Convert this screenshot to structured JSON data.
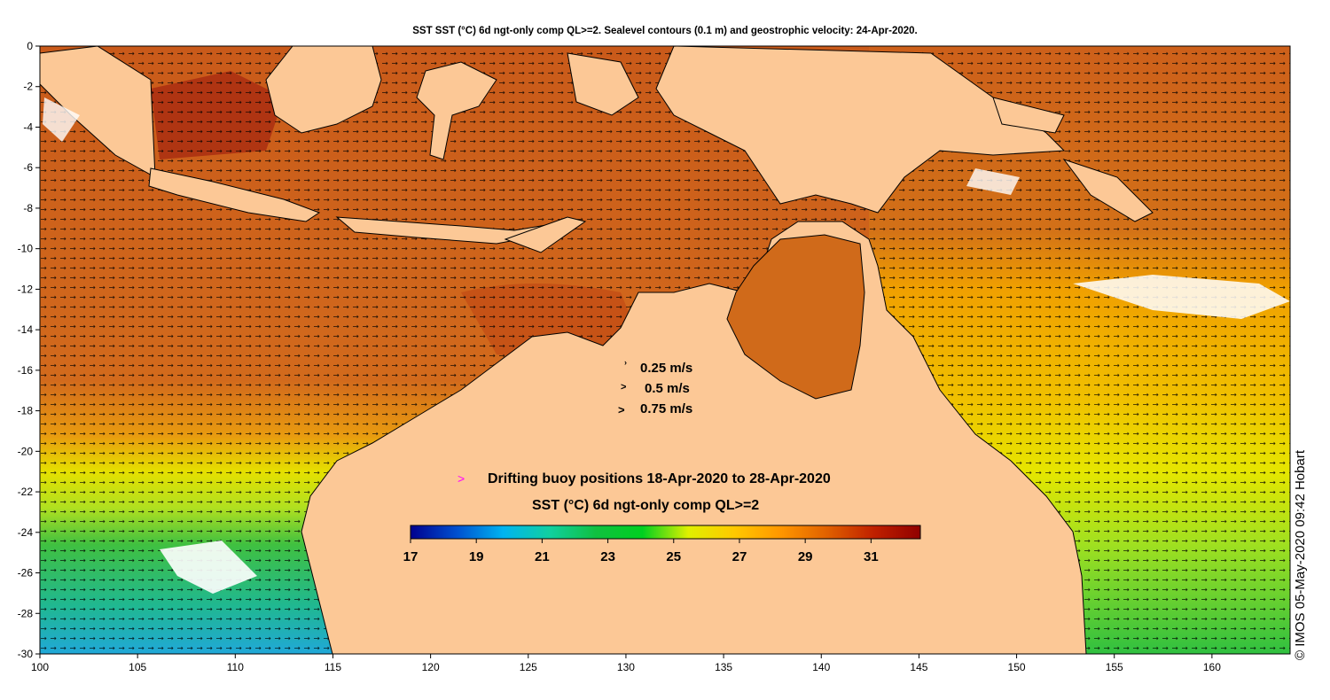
{
  "title": "SST SST (°C) 6d ngt-only comp QL>=2. Sealevel contours (0.1 m) and geostrophic velocity: 24-Apr-2020.",
  "credit": "© IMOS 05-May-2020 09:42 Hobart",
  "velocity_legend": [
    {
      "label": "0.25 m/s"
    },
    {
      "label": "0.5 m/s"
    },
    {
      "label": "0.75 m/s"
    }
  ],
  "buoy_legend": {
    "marker": ">",
    "label": "Drifting buoy positions 18-Apr-2020 to 28-Apr-2020",
    "color": "#ff00ff"
  },
  "colorbar": {
    "title": "SST (°C) 6d ngt-only comp QL>=2",
    "ticks": [
      "17",
      "19",
      "21",
      "23",
      "25",
      "27",
      "29",
      "31"
    ],
    "min": 17,
    "max": 32.5,
    "colors": [
      "#00008f",
      "#0050d0",
      "#00b4f0",
      "#10d0a0",
      "#10c040",
      "#00d020",
      "#e0f000",
      "#ffc800",
      "#ff9600",
      "#e06000",
      "#c02000",
      "#900000"
    ]
  },
  "axes": {
    "x_ticks": [
      "100",
      "105",
      "110",
      "115",
      "120",
      "125",
      "130",
      "135",
      "140",
      "145",
      "150",
      "155",
      "160"
    ],
    "y_ticks": [
      "0",
      "-2",
      "-4",
      "-6",
      "-8",
      "-10",
      "-12",
      "-14",
      "-16",
      "-18",
      "-20",
      "-22",
      "-24",
      "-26",
      "-28",
      "-30"
    ],
    "lon_range": [
      100,
      164
    ],
    "lat_range": [
      -30,
      0
    ]
  },
  "colors": {
    "land": "#fcc896",
    "coast": "#000000",
    "warm_sea": "#d2691e",
    "hot_sea": "#b83c10",
    "orange_sea": "#f0a000",
    "yellow_sea": "#e6e600",
    "green_sea": "#30c030",
    "cool_sea": "#20c8b0"
  }
}
